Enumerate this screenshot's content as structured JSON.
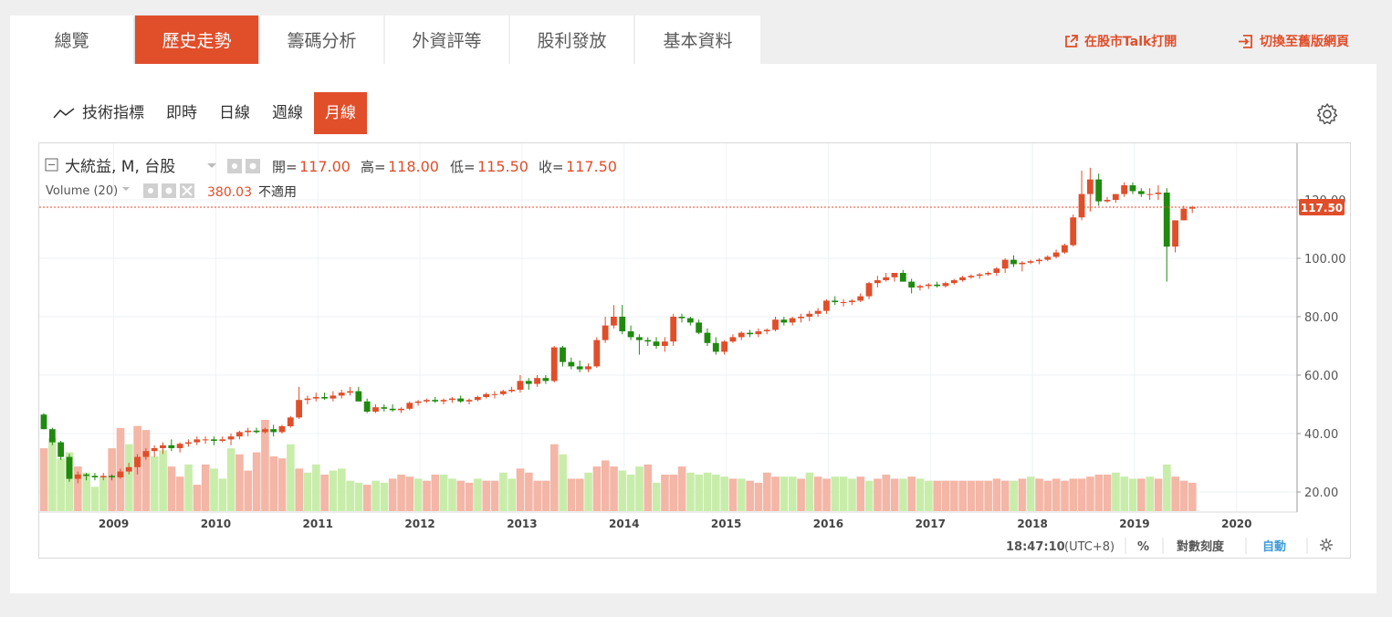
{
  "tabs": [
    {
      "label": "總覽",
      "active": false
    },
    {
      "label": "歷史走勢",
      "active": true
    },
    {
      "label": "籌碼分析",
      "active": false
    },
    {
      "label": "外資評等",
      "active": false
    },
    {
      "label": "股利發放",
      "active": false
    },
    {
      "label": "基本資料",
      "active": false
    }
  ],
  "links": {
    "open_talk": "在股市Talk打開",
    "switch_old": "切換至舊版網頁"
  },
  "subnav": {
    "indicator": "技術指標",
    "items": [
      "即時",
      "日線",
      "週線",
      "月線"
    ],
    "active": "月線"
  },
  "legend": {
    "symbol": "大統益, M, 台股",
    "open_label": "開=",
    "open": "117.00",
    "high_label": "高=",
    "high": "118.00",
    "low_label": "低=",
    "low": "115.50",
    "close_label": "收=",
    "close": "117.50",
    "volume_label": "Volume (20)",
    "volume_value": "380.03",
    "volume_note": "不適用"
  },
  "status": {
    "time": "18:47:10",
    "tz": "(UTC+8)",
    "percent": "%",
    "log": "對數刻度",
    "auto": "自動"
  },
  "colors": {
    "accent": "#e04e2a",
    "up": "#e04e2a",
    "down": "#1f8a0f",
    "vol_up": "#f4b6a6",
    "vol_down": "#c8edaa"
  },
  "chart_data": {
    "type": "candlestick",
    "interval": "monthly",
    "last_price_label": "117.50",
    "y_ticks": [
      20,
      40,
      60,
      80,
      100,
      120
    ],
    "y_tick_labels": [
      "20.00",
      "40.00",
      "60.00",
      "80.00",
      "100.00",
      "120.00"
    ],
    "ylim": [
      14,
      135
    ],
    "x_labels": [
      "2009",
      "2010",
      "2011",
      "2012",
      "2013",
      "2014",
      "2015",
      "2016",
      "2017",
      "2018",
      "2019",
      "2020"
    ],
    "start": "2008-05",
    "ohlc": [
      [
        46.5,
        47,
        41.5,
        41.5
      ],
      [
        41.5,
        42,
        36,
        37
      ],
      [
        37,
        37.5,
        31,
        32
      ],
      [
        32,
        33,
        23.5,
        24.5
      ],
      [
        24.5,
        27,
        23,
        26
      ],
      [
        26,
        26.5,
        24,
        25.5
      ],
      [
        25.5,
        26.5,
        24,
        25
      ],
      [
        25,
        26.5,
        24,
        25.5
      ],
      [
        25.5,
        26,
        24,
        25
      ],
      [
        25,
        28,
        24.5,
        27
      ],
      [
        27,
        30,
        26,
        28.5
      ],
      [
        28.5,
        33,
        26,
        32
      ],
      [
        32,
        35,
        31,
        34
      ],
      [
        34,
        36,
        32,
        35
      ],
      [
        35,
        37,
        33,
        36
      ],
      [
        36,
        38,
        34,
        35
      ],
      [
        35,
        37,
        33.5,
        36.5
      ],
      [
        36.5,
        38,
        35.5,
        37
      ],
      [
        37,
        39,
        36,
        38
      ],
      [
        38,
        39,
        36.5,
        38
      ],
      [
        38,
        39,
        36,
        37.5
      ],
      [
        37.5,
        39,
        37,
        38
      ],
      [
        38,
        40,
        36,
        39
      ],
      [
        39,
        41,
        38,
        40.5
      ],
      [
        40.5,
        42,
        39,
        41
      ],
      [
        41,
        42,
        40,
        40.5
      ],
      [
        40.5,
        42,
        40,
        41.5
      ],
      [
        41.5,
        43,
        39,
        40.5
      ],
      [
        40.5,
        43,
        40,
        42.5
      ],
      [
        42.5,
        46,
        42,
        45.5
      ],
      [
        45.5,
        56,
        45,
        51.5
      ],
      [
        51.5,
        53,
        50,
        52
      ],
      [
        52,
        54,
        51,
        52.5
      ],
      [
        52.5,
        54,
        51.5,
        52
      ],
      [
        52,
        54.5,
        51,
        53
      ],
      [
        53,
        55,
        52,
        54
      ],
      [
        54,
        56,
        53,
        54.5
      ],
      [
        54.5,
        56,
        51,
        51
      ],
      [
        51,
        52,
        47,
        47.5
      ],
      [
        47.5,
        50,
        47,
        49
      ],
      [
        49,
        50,
        47.5,
        48.5
      ],
      [
        48.5,
        50,
        47.5,
        48
      ],
      [
        48,
        49,
        47,
        48.5
      ],
      [
        48.5,
        51,
        48,
        50.5
      ],
      [
        50.5,
        51.5,
        49.5,
        51
      ],
      [
        51,
        52,
        50.5,
        51.5
      ],
      [
        51.5,
        52.5,
        50.5,
        51
      ],
      [
        51,
        52,
        50,
        51.5
      ],
      [
        51.5,
        52.5,
        50.5,
        52
      ],
      [
        52,
        53,
        50.5,
        51
      ],
      [
        51,
        52,
        50,
        51.5
      ],
      [
        51.5,
        53,
        51,
        52.5
      ],
      [
        52.5,
        54,
        52,
        53.5
      ],
      [
        53.5,
        54.5,
        52,
        53.5
      ],
      [
        53.5,
        55,
        53,
        54.5
      ],
      [
        54.5,
        56,
        54,
        55
      ],
      [
        55,
        60,
        54,
        58
      ],
      [
        58,
        59,
        55,
        57
      ],
      [
        57,
        60,
        56,
        59
      ],
      [
        59,
        60,
        57,
        58
      ],
      [
        58,
        70,
        57.5,
        69.5
      ],
      [
        69.5,
        70,
        63,
        64.5
      ],
      [
        64.5,
        66,
        62,
        63
      ],
      [
        63,
        65,
        61,
        62
      ],
      [
        62,
        64,
        61,
        63
      ],
      [
        63,
        73,
        62.5,
        72
      ],
      [
        72,
        80,
        71,
        77
      ],
      [
        77,
        84,
        76,
        80
      ],
      [
        80,
        84,
        74,
        75
      ],
      [
        75,
        77,
        72,
        73
      ],
      [
        73,
        74,
        67,
        72
      ],
      [
        72,
        73,
        70,
        71.5
      ],
      [
        71.5,
        73,
        69,
        70
      ],
      [
        70,
        73,
        68,
        71.5
      ],
      [
        71.5,
        81,
        70,
        80
      ],
      [
        80,
        81,
        78,
        79.5
      ],
      [
        79.5,
        80,
        77,
        78
      ],
      [
        78,
        79,
        74,
        74.5
      ],
      [
        74.5,
        76,
        70,
        71
      ],
      [
        71,
        73,
        67,
        68
      ],
      [
        68,
        72,
        67,
        71.5
      ],
      [
        71.5,
        74,
        71,
        73
      ],
      [
        73,
        75,
        72,
        74.5
      ],
      [
        74.5,
        75.5,
        73,
        74
      ],
      [
        74,
        76,
        73,
        75
      ],
      [
        75,
        76,
        74,
        75.5
      ],
      [
        75.5,
        80,
        75,
        79
      ],
      [
        79,
        80,
        77,
        78
      ],
      [
        78,
        80,
        77,
        79.5
      ],
      [
        79.5,
        81,
        78,
        80
      ],
      [
        80,
        82,
        78.5,
        81
      ],
      [
        81,
        83,
        80,
        82
      ],
      [
        82,
        86,
        81,
        85.5
      ],
      [
        85.5,
        87,
        84,
        85
      ],
      [
        85,
        86,
        83.5,
        85
      ],
      [
        85,
        86,
        84,
        85.5
      ],
      [
        85.5,
        88,
        85,
        87
      ],
      [
        87,
        92,
        86,
        91.5
      ],
      [
        91.5,
        94,
        90,
        92.5
      ],
      [
        92.5,
        95,
        92,
        93.5
      ],
      [
        93.5,
        95,
        92,
        95
      ],
      [
        95,
        96,
        92,
        92
      ],
      [
        92,
        93,
        88,
        90
      ],
      [
        90,
        91,
        89,
        90.5
      ],
      [
        90.5,
        91.5,
        89.5,
        91
      ],
      [
        91,
        92,
        90,
        90.5
      ],
      [
        90.5,
        92,
        90,
        91.5
      ],
      [
        91.5,
        93,
        91,
        92.5
      ],
      [
        92.5,
        94,
        92,
        93.5
      ],
      [
        93.5,
        94.5,
        93,
        94
      ],
      [
        94,
        95,
        93,
        94.5
      ],
      [
        94.5,
        95.5,
        94,
        95
      ],
      [
        95,
        97,
        94,
        96.5
      ],
      [
        96.5,
        100,
        95,
        99.5
      ],
      [
        99.5,
        101,
        97,
        98
      ],
      [
        98,
        99,
        95.5,
        98.5
      ],
      [
        98.5,
        99.5,
        98,
        99
      ],
      [
        99,
        100,
        98,
        99.5
      ],
      [
        99.5,
        101,
        99,
        100.5
      ],
      [
        100.5,
        103,
        100,
        102
      ],
      [
        102,
        105,
        101.5,
        104.5
      ],
      [
        104.5,
        115,
        104,
        114
      ],
      [
        114,
        130,
        113,
        122
      ],
      [
        122,
        131,
        116,
        127
      ],
      [
        127,
        129,
        118,
        119.5
      ],
      [
        119.5,
        121,
        119,
        120
      ],
      [
        120,
        122,
        119,
        122
      ],
      [
        122,
        126,
        121,
        125
      ],
      [
        125,
        126,
        122,
        123
      ],
      [
        123,
        124,
        121,
        122
      ],
      [
        122,
        124,
        120,
        122
      ],
      [
        122,
        125,
        120,
        122.5
      ],
      [
        122.5,
        124,
        92,
        104
      ],
      [
        104,
        113,
        102,
        113
      ],
      [
        113,
        118,
        113,
        117
      ],
      [
        117,
        118,
        115.5,
        117.5
      ]
    ],
    "volume": [
      [
        31,
        1
      ],
      [
        36,
        0
      ],
      [
        26,
        0
      ],
      [
        29,
        0
      ],
      [
        22,
        1
      ],
      [
        19,
        0
      ],
      [
        12,
        0
      ],
      [
        17,
        0
      ],
      [
        31,
        1
      ],
      [
        41,
        1
      ],
      [
        33,
        0
      ],
      [
        42,
        1
      ],
      [
        40,
        1
      ],
      [
        27,
        0
      ],
      [
        30,
        0
      ],
      [
        22,
        1
      ],
      [
        17,
        1
      ],
      [
        23,
        0
      ],
      [
        13,
        1
      ],
      [
        23,
        1
      ],
      [
        21,
        0
      ],
      [
        16,
        0
      ],
      [
        31,
        0
      ],
      [
        28,
        1
      ],
      [
        20,
        1
      ],
      [
        29,
        1
      ],
      [
        45,
        1
      ],
      [
        27,
        1
      ],
      [
        26,
        1
      ],
      [
        33,
        0
      ],
      [
        21,
        1
      ],
      [
        19,
        0
      ],
      [
        23,
        0
      ],
      [
        18,
        1
      ],
      [
        20,
        0
      ],
      [
        21,
        0
      ],
      [
        15,
        0
      ],
      [
        14,
        0
      ],
      [
        13,
        1
      ],
      [
        15,
        0
      ],
      [
        14,
        0
      ],
      [
        16,
        1
      ],
      [
        18,
        1
      ],
      [
        17,
        1
      ],
      [
        16,
        0
      ],
      [
        15,
        1
      ],
      [
        18,
        1
      ],
      [
        18,
        0
      ],
      [
        16,
        0
      ],
      [
        15,
        1
      ],
      [
        14,
        1
      ],
      [
        16,
        0
      ],
      [
        15,
        1
      ],
      [
        15,
        1
      ],
      [
        19,
        0
      ],
      [
        16,
        0
      ],
      [
        21,
        1
      ],
      [
        19,
        1
      ],
      [
        15,
        1
      ],
      [
        15,
        1
      ],
      [
        33,
        1
      ],
      [
        28,
        0
      ],
      [
        16,
        1
      ],
      [
        16,
        1
      ],
      [
        19,
        0
      ],
      [
        22,
        1
      ],
      [
        25,
        1
      ],
      [
        22,
        1
      ],
      [
        20,
        0
      ],
      [
        18,
        0
      ],
      [
        22,
        0
      ],
      [
        23,
        1
      ],
      [
        14,
        0
      ],
      [
        18,
        1
      ],
      [
        18,
        1
      ],
      [
        22,
        1
      ],
      [
        19,
        0
      ],
      [
        18,
        0
      ],
      [
        19,
        0
      ],
      [
        18,
        0
      ],
      [
        17,
        0
      ],
      [
        16,
        1
      ],
      [
        16,
        0
      ],
      [
        15,
        1
      ],
      [
        14,
        1
      ],
      [
        19,
        1
      ],
      [
        17,
        1
      ],
      [
        17,
        0
      ],
      [
        17,
        0
      ],
      [
        16,
        1
      ],
      [
        19,
        0
      ],
      [
        17,
        1
      ],
      [
        16,
        1
      ],
      [
        17,
        0
      ],
      [
        17,
        0
      ],
      [
        16,
        0
      ],
      [
        17,
        1
      ],
      [
        15,
        0
      ],
      [
        16,
        1
      ],
      [
        18,
        1
      ],
      [
        16,
        1
      ],
      [
        16,
        0
      ],
      [
        17,
        1
      ],
      [
        16,
        0
      ],
      [
        15,
        0
      ],
      [
        15,
        1
      ],
      [
        15,
        1
      ],
      [
        15,
        1
      ],
      [
        15,
        1
      ],
      [
        15,
        1
      ],
      [
        15,
        1
      ],
      [
        15,
        1
      ],
      [
        16,
        1
      ],
      [
        15,
        1
      ],
      [
        15,
        0
      ],
      [
        16,
        1
      ],
      [
        17,
        0
      ],
      [
        16,
        1
      ],
      [
        15,
        1
      ],
      [
        16,
        1
      ],
      [
        15,
        1
      ],
      [
        16,
        1
      ],
      [
        16,
        1
      ],
      [
        17,
        1
      ],
      [
        18,
        1
      ],
      [
        18,
        1
      ],
      [
        19,
        0
      ],
      [
        17,
        0
      ],
      [
        16,
        0
      ],
      [
        16,
        1
      ],
      [
        17,
        0
      ],
      [
        16,
        1
      ],
      [
        23,
        0
      ],
      [
        17,
        1
      ],
      [
        15,
        1
      ],
      [
        14,
        1
      ]
    ]
  }
}
